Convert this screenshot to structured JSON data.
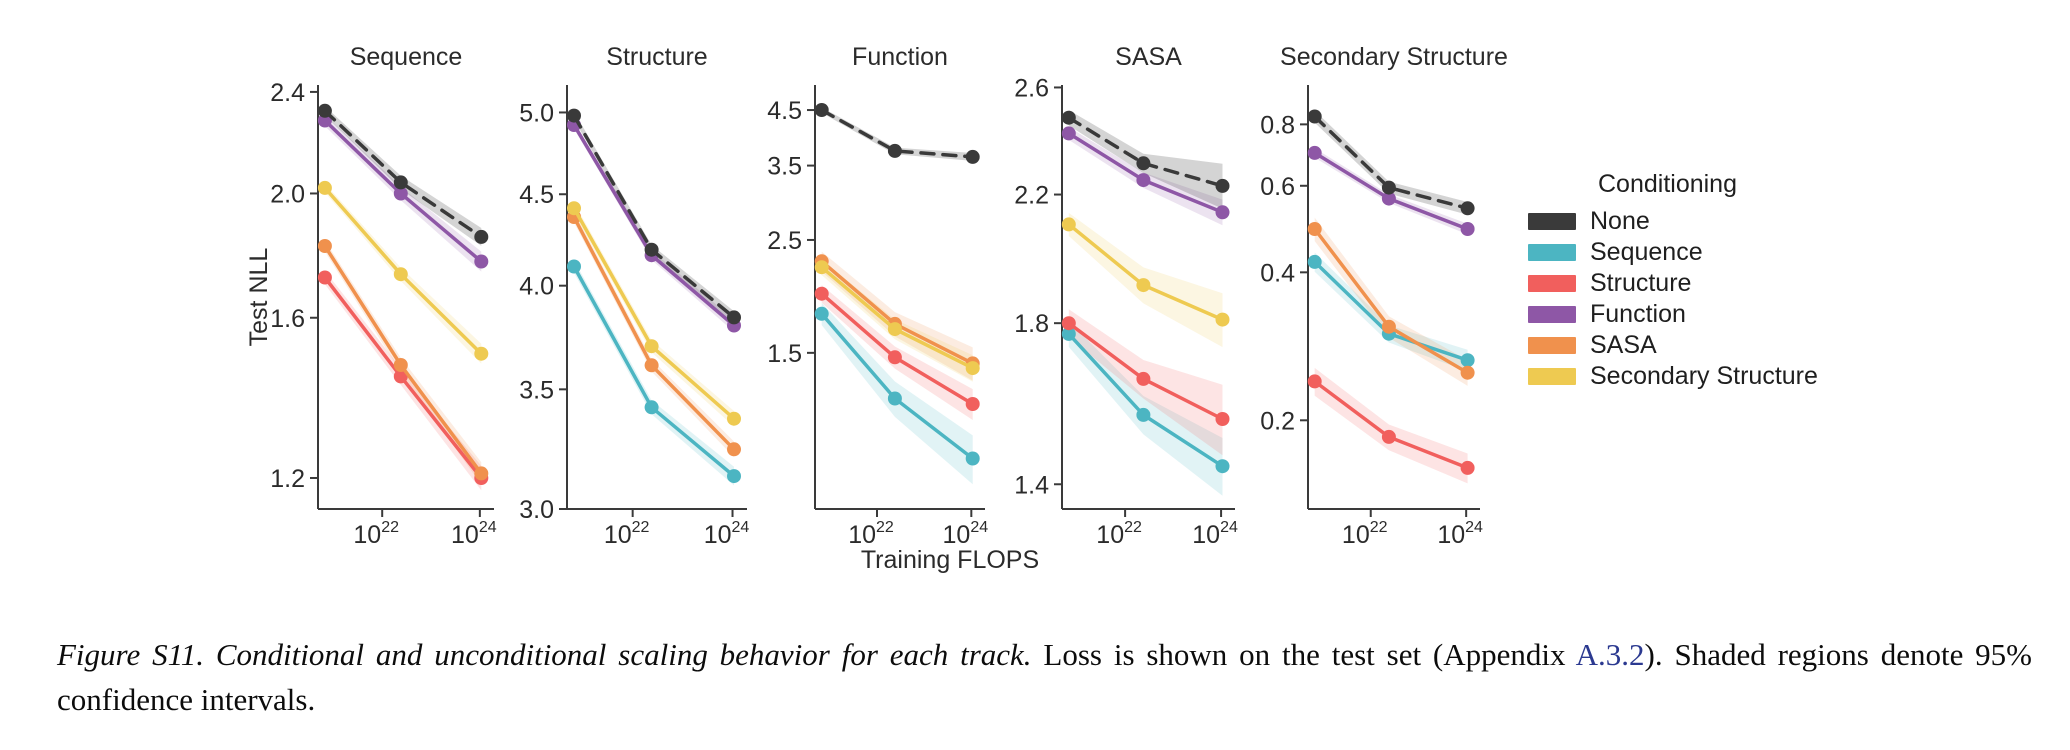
{
  "palette": {
    "none": "#3a3a3a",
    "sequence": "#4cb5c2",
    "structure": "#f15f5d",
    "function": "#8e57a6",
    "sasa": "#f0914d",
    "secondary_structure": "#eeca51",
    "link_blue": "#2b3990",
    "axis": "#3a3a3a"
  },
  "legend": {
    "title": "Conditioning",
    "items": [
      {
        "label": "None",
        "color": "none"
      },
      {
        "label": "Sequence",
        "color": "sequence"
      },
      {
        "label": "Structure",
        "color": "structure"
      },
      {
        "label": "Function",
        "color": "function"
      },
      {
        "label": "SASA",
        "color": "sasa"
      },
      {
        "label": "Secondary Structure",
        "color": "secondary_structure"
      }
    ]
  },
  "chart_data": {
    "type": "line",
    "xlabel": "Training FLOPS",
    "ylabel": "Test NLL",
    "xscale": "log",
    "yscale": "log",
    "x_flops": [
      6.7e+20,
      2.4e+22,
      1.07e+24
    ],
    "xticks": [
      1e+22,
      1e+24
    ],
    "xtick_labels": [
      "10^22",
      "10^24"
    ],
    "xlim_log10": [
      20.685,
      24.29
    ],
    "ci_note": "Shaded regions denote 95% confidence intervals",
    "panels": [
      {
        "title": "Sequence",
        "yticks": [
          1.2,
          1.6,
          2.0,
          2.4
        ],
        "ylim": [
          1.135,
          2.43
        ],
        "series": [
          {
            "conditioning": "Structure",
            "color": "structure",
            "dashed": false,
            "values": [
              1.72,
              1.44,
              1.2
            ],
            "ci": [
              0.012,
              0.015,
              0.022
            ]
          },
          {
            "conditioning": "SASA",
            "color": "sasa",
            "dashed": false,
            "values": [
              1.82,
              1.47,
              1.21
            ],
            "ci": [
              0.01,
              0.013,
              0.02
            ]
          },
          {
            "conditioning": "Secondary Structure",
            "color": "secondary_structure",
            "dashed": false,
            "values": [
              2.02,
              1.73,
              1.5
            ],
            "ci": [
              0.008,
              0.012,
              0.018
            ]
          },
          {
            "conditioning": "Function",
            "color": "function",
            "dashed": false,
            "values": [
              2.28,
              2.0,
              1.77
            ],
            "ci": [
              0.01,
              0.012,
              0.018
            ]
          },
          {
            "conditioning": "None",
            "color": "none",
            "dashed": true,
            "values": [
              2.32,
              2.04,
              1.85
            ],
            "ci": [
              0.008,
              0.012,
              0.016
            ]
          }
        ]
      },
      {
        "title": "Structure",
        "yticks": [
          3.0,
          3.5,
          4.0,
          4.5,
          5.0
        ],
        "ylim": [
          3.0,
          5.18
        ],
        "series": [
          {
            "conditioning": "Sequence",
            "color": "sequence",
            "dashed": false,
            "values": [
              4.1,
              3.42,
              3.13
            ],
            "ci": [
              0.008,
              0.009,
              0.012
            ]
          },
          {
            "conditioning": "SASA",
            "color": "sasa",
            "dashed": false,
            "values": [
              4.37,
              3.61,
              3.24
            ],
            "ci": [
              0.007,
              0.008,
              0.01
            ]
          },
          {
            "conditioning": "Secondary Structure",
            "color": "secondary_structure",
            "dashed": false,
            "values": [
              4.42,
              3.7,
              3.37
            ],
            "ci": [
              0.007,
              0.008,
              0.01
            ]
          },
          {
            "conditioning": "Function",
            "color": "function",
            "dashed": false,
            "values": [
              4.92,
              4.16,
              3.8
            ],
            "ci": [
              0.005,
              0.006,
              0.008
            ]
          },
          {
            "conditioning": "None",
            "color": "none",
            "dashed": true,
            "values": [
              4.98,
              4.19,
              3.84
            ],
            "ci": [
              0.005,
              0.006,
              0.008
            ]
          }
        ]
      },
      {
        "title": "Function",
        "yticks": [
          1.5,
          2.5,
          3.5,
          4.5
        ],
        "ylim": [
          0.74,
          5.04
        ],
        "series": [
          {
            "conditioning": "Sequence",
            "color": "sequence",
            "dashed": false,
            "values": [
              1.79,
              1.22,
              0.93
            ],
            "ci": [
              0.05,
              0.08,
              0.11
            ]
          },
          {
            "conditioning": "Structure",
            "color": "structure",
            "dashed": false,
            "values": [
              1.96,
              1.47,
              1.19
            ],
            "ci": [
              0.04,
              0.05,
              0.07
            ]
          },
          {
            "conditioning": "SASA",
            "color": "sasa",
            "dashed": false,
            "values": [
              2.27,
              1.71,
              1.43
            ],
            "ci": [
              0.045,
              0.055,
              0.075
            ]
          },
          {
            "conditioning": "Secondary Structure",
            "color": "secondary_structure",
            "dashed": false,
            "values": [
              2.21,
              1.67,
              1.4
            ],
            "ci": [
              0.035,
              0.045,
              0.06
            ]
          },
          {
            "conditioning": "None",
            "color": "none",
            "dashed": true,
            "values": [
              4.5,
              3.74,
              3.64
            ],
            "ci": [
              0.012,
              0.015,
              0.018
            ]
          }
        ]
      },
      {
        "title": "SASA",
        "yticks": [
          1.4,
          1.8,
          2.2,
          2.6
        ],
        "ylim": [
          1.347,
          2.61
        ],
        "series": [
          {
            "conditioning": "Sequence",
            "color": "sequence",
            "dashed": false,
            "values": [
              1.77,
              1.56,
              1.44
            ],
            "ci": [
              0.02,
              0.03,
              0.045
            ]
          },
          {
            "conditioning": "Structure",
            "color": "structure",
            "dashed": false,
            "values": [
              1.8,
              1.65,
              1.55
            ],
            "ci": [
              0.022,
              0.03,
              0.055
            ]
          },
          {
            "conditioning": "Secondary Structure",
            "color": "secondary_structure",
            "dashed": false,
            "values": [
              2.1,
              1.91,
              1.81
            ],
            "ci": [
              0.018,
              0.028,
              0.042
            ]
          },
          {
            "conditioning": "Function",
            "color": "function",
            "dashed": false,
            "values": [
              2.42,
              2.25,
              2.14
            ],
            "ci": [
              0.01,
              0.012,
              0.02
            ]
          },
          {
            "conditioning": "None",
            "color": "none",
            "dashed": true,
            "values": [
              2.48,
              2.31,
              2.23
            ],
            "ci": [
              0.012,
              0.015,
              0.035
            ]
          }
        ]
      },
      {
        "title": "Secondary Structure",
        "yticks": [
          0.2,
          0.4,
          0.6,
          0.8
        ],
        "ylim": [
          0.132,
          0.962
        ],
        "series": [
          {
            "conditioning": "Sequence",
            "color": "sequence",
            "dashed": false,
            "values": [
              0.42,
              0.3,
              0.265
            ],
            "ci": [
              0.045,
              0.04,
              0.05
            ]
          },
          {
            "conditioning": "Structure",
            "color": "structure",
            "dashed": false,
            "values": [
              0.24,
              0.185,
              0.16
            ],
            "ci": [
              0.065,
              0.06,
              0.07
            ]
          },
          {
            "conditioning": "SASA",
            "color": "sasa",
            "dashed": false,
            "values": [
              0.49,
              0.31,
              0.25
            ],
            "ci": [
              0.055,
              0.05,
              0.06
            ]
          },
          {
            "conditioning": "Function",
            "color": "function",
            "dashed": false,
            "values": [
              0.7,
              0.565,
              0.49
            ],
            "ci": [
              0.022,
              0.02,
              0.025
            ]
          },
          {
            "conditioning": "None",
            "color": "none",
            "dashed": true,
            "values": [
              0.83,
              0.595,
              0.54
            ],
            "ci": [
              0.028,
              0.028,
              0.03
            ]
          }
        ]
      }
    ]
  },
  "caption": {
    "title_italic": "Figure S11. Conditional and unconditional scaling behavior for each track.",
    "body_before_link": " Loss is shown on the test set (Appendix ",
    "link_text": "A.3.2",
    "body_after_link": "). Shaded regions denote 95% confidence intervals."
  }
}
